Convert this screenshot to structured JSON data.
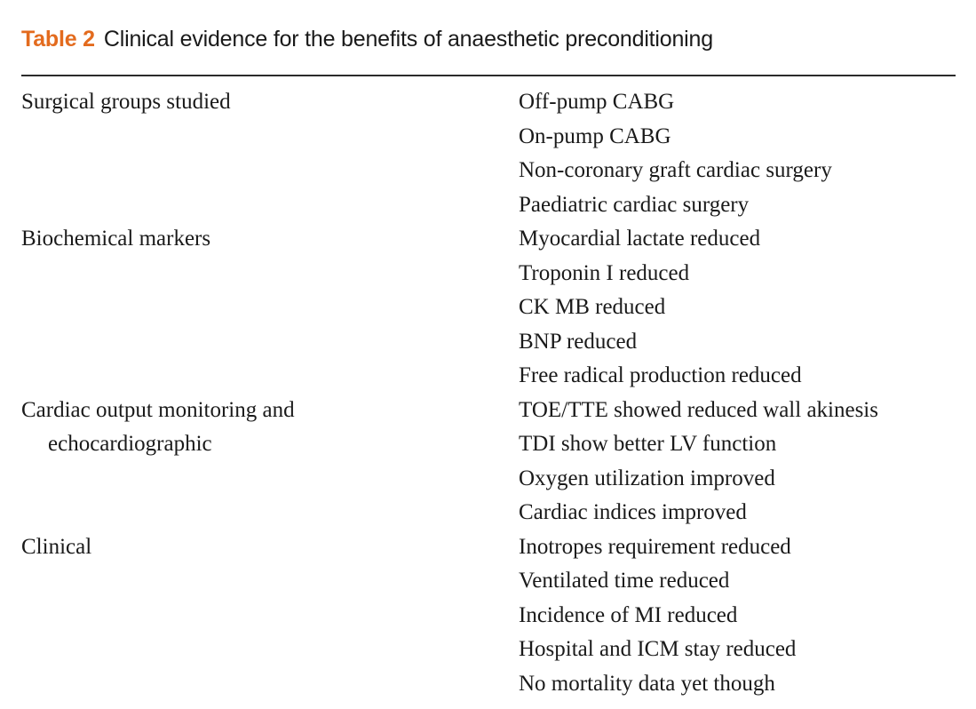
{
  "table": {
    "label": "Table 2",
    "title": "Clinical evidence for the benefits of anaesthetic preconditioning",
    "rows": [
      {
        "category_lines": [
          "Surgical groups studied"
        ],
        "findings": [
          "Off-pump CABG",
          "On-pump CABG",
          "Non-coronary graft cardiac surgery",
          "Paediatric cardiac surgery"
        ]
      },
      {
        "category_lines": [
          "Biochemical markers"
        ],
        "findings": [
          "Myocardial lactate reduced",
          "Troponin I reduced",
          "CK MB reduced",
          "BNP reduced",
          "Free radical production reduced"
        ]
      },
      {
        "category_lines": [
          "Cardiac output monitoring and",
          "echocardiographic"
        ],
        "findings": [
          "TOE/TTE showed reduced wall akinesis",
          "TDI show better LV function",
          "Oxygen utilization improved",
          "Cardiac indices improved"
        ]
      },
      {
        "category_lines": [
          "Clinical"
        ],
        "findings": [
          "Inotropes requirement reduced",
          "Ventilated time reduced",
          "Incidence of MI reduced",
          "Hospital and ICM stay reduced",
          "No mortality data yet though"
        ]
      }
    ]
  },
  "colors": {
    "caption_label": "#e36b1e",
    "text": "#1a1a1a",
    "rule": "#2b2b2b"
  }
}
